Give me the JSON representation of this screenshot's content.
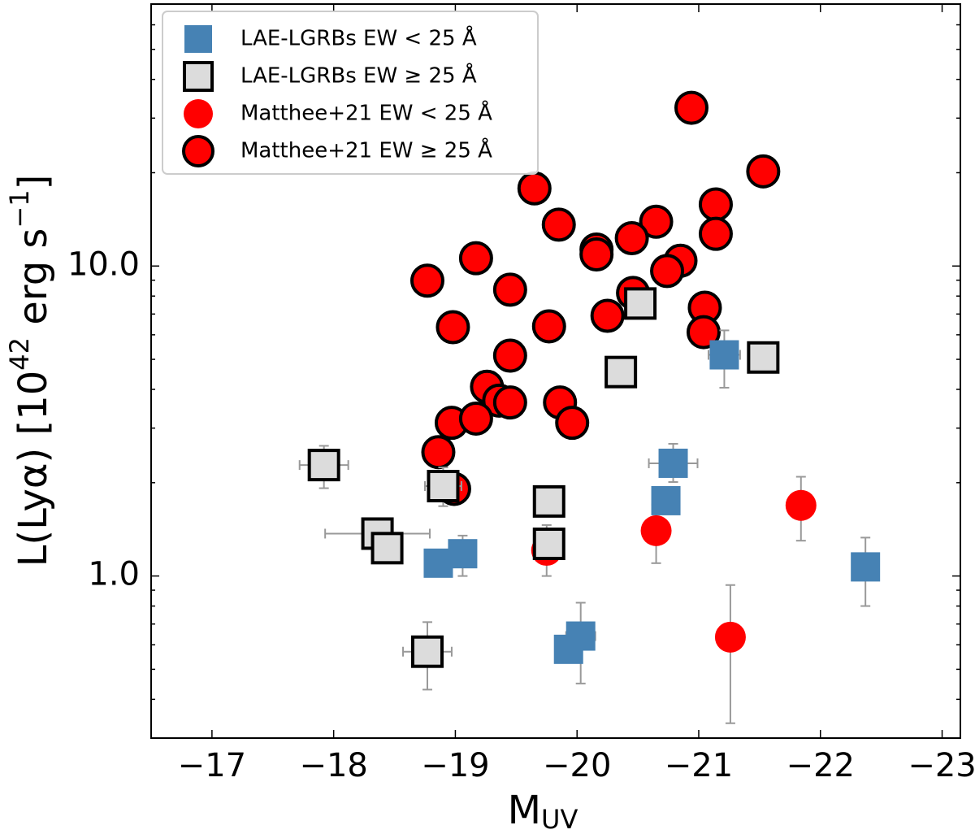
{
  "chart_data": {
    "type": "scatter",
    "xlabel": {
      "main": "M",
      "sub": "UV"
    },
    "ylabel": [
      {
        "text": "L(Lyα) [10"
      },
      {
        "text": "42",
        "sup": true
      },
      {
        "text": " erg s"
      },
      {
        "text": "−1",
        "sup": true
      },
      {
        "text": "]"
      }
    ],
    "xlim": [
      -16.5,
      -23.15
    ],
    "ylim": [
      0.3,
      70
    ],
    "ylog": true,
    "xticks": [
      {
        "value": -17,
        "label": "−17"
      },
      {
        "value": -18,
        "label": "−18"
      },
      {
        "value": -19,
        "label": "−19"
      },
      {
        "value": -20,
        "label": "−20"
      },
      {
        "value": -21,
        "label": "−21"
      },
      {
        "value": -22,
        "label": "−22"
      },
      {
        "value": -23,
        "label": "−23"
      }
    ],
    "yticks": [
      {
        "value": 1,
        "label": "1.0"
      },
      {
        "value": 10,
        "label": "10.0"
      }
    ],
    "yminor_ticks": [
      0.3,
      0.4,
      0.5,
      0.6,
      0.7,
      0.8,
      0.9,
      2,
      3,
      4,
      5,
      6,
      7,
      8,
      9,
      20,
      30,
      40,
      50,
      60,
      70
    ],
    "legend": "upper left",
    "series": [
      {
        "name": "LAE-LGRBs EW < 25 Å",
        "color": "#4682b4",
        "marker": "square",
        "edge": null,
        "x": [
          -21.21,
          -20.79,
          -20.73,
          -22.37,
          -19.06,
          -18.86,
          -20.03,
          -19.93
        ],
        "y": [
          5.17,
          2.31,
          1.75,
          1.07,
          1.18,
          1.1,
          0.64,
          0.58
        ],
        "yerr": [
          [
            1.12,
            1.03
          ],
          [
            0.3,
            0.36
          ],
          null,
          [
            0.27,
            0.26
          ],
          [
            0.18,
            0.17
          ],
          null,
          [
            0.19,
            0.18
          ],
          null
        ],
        "xerr": [
          0.13,
          0.2,
          null,
          null,
          null,
          null,
          0.12,
          null
        ]
      },
      {
        "name": "LAE-LGRBs EW ≥ 25 Å",
        "color": "#dcdcdc",
        "marker": "square",
        "edge": "#000000",
        "x": [
          -20.52,
          -20.36,
          -21.53,
          -17.92,
          -18.9,
          -19.77,
          -18.36,
          -18.44,
          -19.77,
          -18.77
        ],
        "y": [
          7.57,
          4.55,
          5.07,
          2.28,
          1.95,
          1.74,
          1.37,
          1.23,
          1.27,
          0.57
        ],
        "yerr": [
          null,
          null,
          null,
          [
            0.36,
            0.35
          ],
          [
            0.27,
            0.29
          ],
          null,
          null,
          null,
          null,
          [
            0.14,
            0.14
          ]
        ],
        "xerr": [
          null,
          null,
          null,
          0.2,
          0.15,
          null,
          0.43,
          null,
          null,
          0.2
        ]
      },
      {
        "name": "Matthee+21 EW < 25 Å",
        "color": "#ff0000",
        "marker": "circle",
        "edge": null,
        "x": [
          -21.84,
          -20.65,
          -21.26,
          -19.75
        ],
        "y": [
          1.69,
          1.4,
          0.635,
          1.21
        ],
        "yerr": [
          [
            0.39,
            0.4
          ],
          [
            0.3,
            0.3
          ],
          [
            0.3,
            0.3
          ],
          [
            0.21,
            0.25
          ]
        ],
        "xerr": [
          null,
          null,
          null,
          null
        ]
      },
      {
        "name": "Matthee+21 EW ≥ 25 Å",
        "color": "#ff0000",
        "marker": "circle",
        "edge": "#000000",
        "x": [
          -20.94,
          -21.53,
          -19.65,
          -21.14,
          -19.85,
          -20.65,
          -21.14,
          -20.45,
          -20.16,
          -20.16,
          -19.17,
          -20.85,
          -20.74,
          -18.77,
          -19.45,
          -20.46,
          -20.25,
          -21.05,
          -21.04,
          -18.98,
          -19.77,
          -19.45,
          -19.26,
          -19.36,
          -19.45,
          -19.86,
          -19.96,
          -18.97,
          -19.17,
          -18.86,
          -18.99
        ],
        "y": [
          32.4,
          20.2,
          17.8,
          15.8,
          13.6,
          13.9,
          12.7,
          12.3,
          11.3,
          10.9,
          10.6,
          10.4,
          9.64,
          8.97,
          8.39,
          8.19,
          6.91,
          7.34,
          6.12,
          6.35,
          6.39,
          5.14,
          4.08,
          3.68,
          3.63,
          3.63,
          3.12,
          3.12,
          3.22,
          2.51,
          1.91
        ]
      }
    ]
  }
}
